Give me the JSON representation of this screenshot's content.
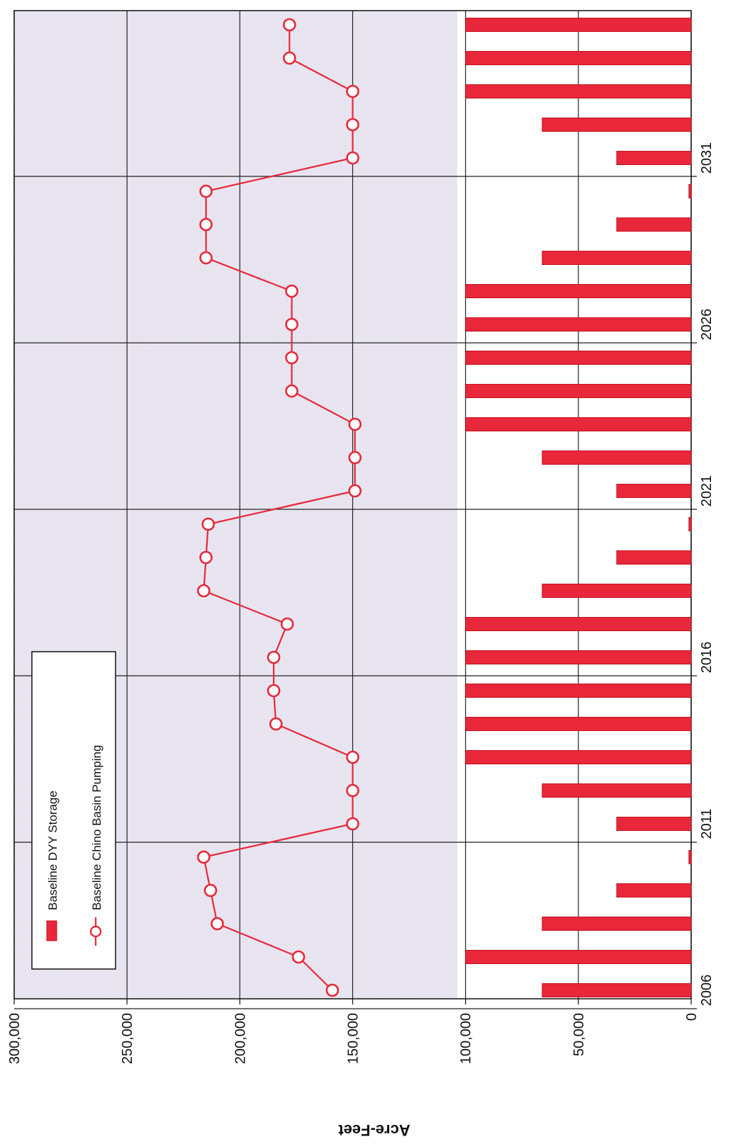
{
  "chart_data": {
    "type": "bar",
    "orientation": "rotated-90",
    "title": "",
    "xlabel": "",
    "ylabel": "Acre-Feet",
    "ylim": [
      0,
      300000
    ],
    "yticks": [
      0,
      50000,
      100000,
      150000,
      200000,
      250000,
      300000
    ],
    "ytick_labels": [
      "0",
      "50,000",
      "100,000",
      "150,000",
      "200,000",
      "250,000",
      "300,000"
    ],
    "xtick_labels": [
      "2006",
      "2011",
      "2016",
      "2021",
      "2026",
      "2031"
    ],
    "x": [
      2006,
      2007,
      2008,
      2009,
      2010,
      2011,
      2012,
      2013,
      2014,
      2015,
      2016,
      2017,
      2018,
      2019,
      2020,
      2021,
      2022,
      2023,
      2024,
      2025,
      2026,
      2027,
      2028,
      2029,
      2030,
      2031,
      2032,
      2033,
      2034,
      2035
    ],
    "grid": true,
    "legend_position": "top-left",
    "series": [
      {
        "name": "Baseline DYY Storage",
        "type": "bar",
        "color": "#e8283a",
        "values": [
          66000,
          100000,
          66000,
          33000,
          1000,
          33000,
          66000,
          100000,
          100000,
          100000,
          100000,
          100000,
          66000,
          33000,
          1000,
          33000,
          66000,
          100000,
          100000,
          100000,
          100000,
          100000,
          66000,
          33000,
          1000,
          33000,
          66000,
          100000,
          100000,
          100000
        ]
      },
      {
        "name": "Baseline Chino Basin Pumping",
        "type": "line",
        "marker": "circle-open",
        "color": "#e8283a",
        "values": [
          159000,
          174000,
          210000,
          213000,
          216000,
          150000,
          150000,
          150000,
          184000,
          185000,
          185000,
          179000,
          216000,
          215000,
          214000,
          149000,
          149000,
          149000,
          177000,
          177000,
          177000,
          177000,
          215000,
          215000,
          215000,
          150000,
          150000,
          150000,
          178000,
          178000
        ]
      }
    ]
  }
}
